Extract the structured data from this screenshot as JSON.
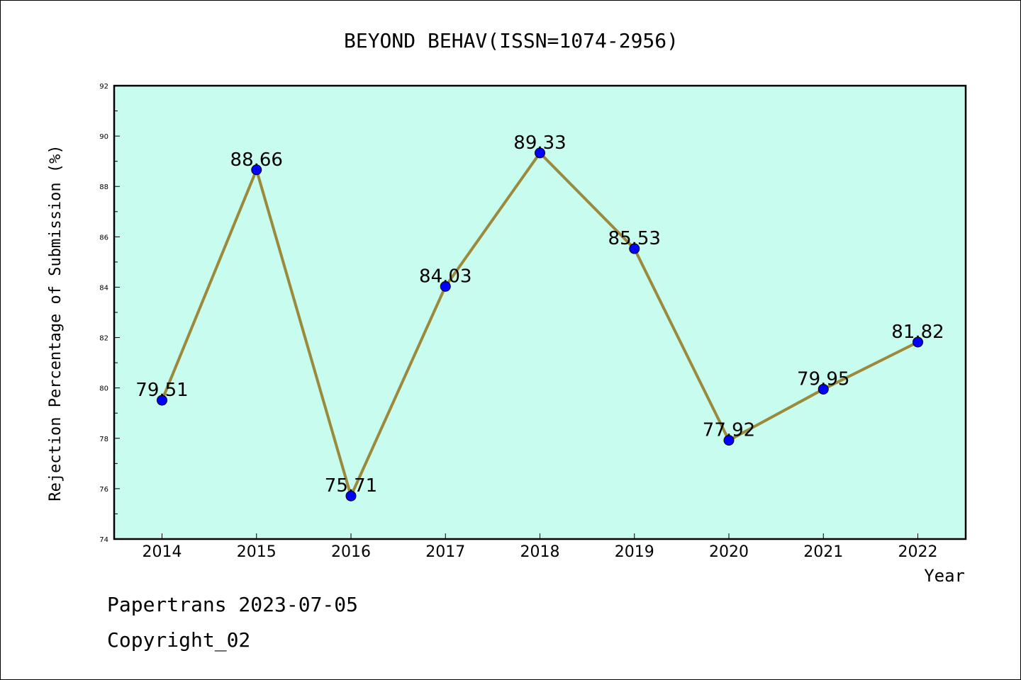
{
  "chart_data": {
    "type": "line",
    "title": "BEYOND BEHAV(ISSN=1074-2956)",
    "xlabel": "Year",
    "ylabel": "Rejection Percentage of Submission (%)",
    "x": [
      "2014",
      "2015",
      "2016",
      "2017",
      "2018",
      "2019",
      "2020",
      "2021",
      "2022"
    ],
    "series": [
      {
        "values": [
          79.51,
          88.66,
          75.71,
          84.03,
          89.33,
          85.53,
          77.92,
          79.95,
          81.82
        ],
        "labels": [
          "79.51",
          "88.66",
          "75.71",
          "84.03",
          "89.33",
          "85.53",
          "77.92",
          "79.95",
          "81.82"
        ]
      }
    ],
    "ylim": [
      74,
      92
    ],
    "yticks": [
      "74",
      "76",
      "78",
      "80",
      "82",
      "84",
      "86",
      "88",
      "90",
      "92"
    ],
    "grid": false,
    "colors": {
      "plot_background": "#c8fcee",
      "line": "#9b8a3c",
      "marker": "#0000ff"
    }
  },
  "footer": {
    "line1": "Papertrans 2023-07-05",
    "line2": "Copyright_02"
  }
}
